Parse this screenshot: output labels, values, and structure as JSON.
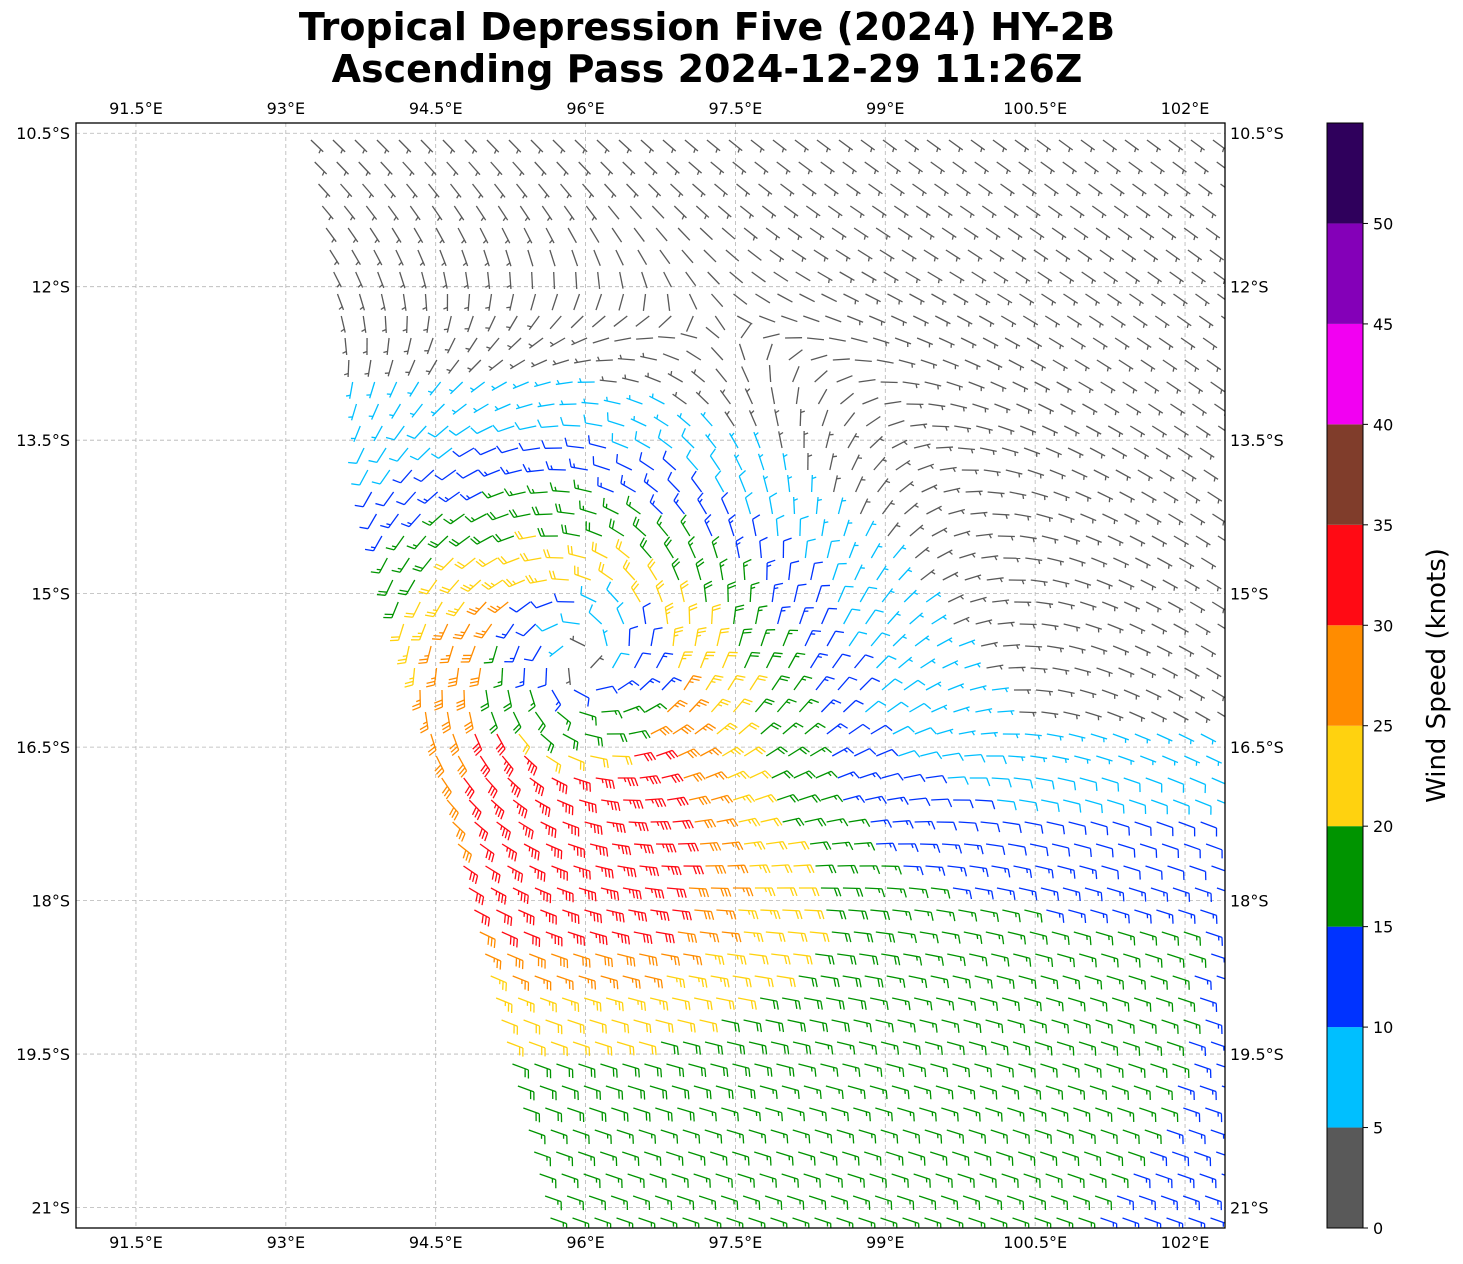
{
  "title": {
    "line1": "Tropical Depression Five (2024) HY-2B",
    "line2": "Ascending Pass 2024-12-29 11:26Z"
  },
  "map": {
    "lon_range": [
      90.9,
      102.4
    ],
    "lat_range": [
      -21.2,
      -10.4
    ],
    "lon_ticks": [
      {
        "value": 91.5,
        "label": "91.5°E"
      },
      {
        "value": 93,
        "label": "93°E"
      },
      {
        "value": 94.5,
        "label": "94.5°E"
      },
      {
        "value": 96,
        "label": "96°E"
      },
      {
        "value": 97.5,
        "label": "97.5°E"
      },
      {
        "value": 99,
        "label": "99°E"
      },
      {
        "value": 100.5,
        "label": "100.5°E"
      },
      {
        "value": 102,
        "label": "102°E"
      }
    ],
    "lat_ticks": [
      {
        "value": -10.5,
        "label": "10.5°S"
      },
      {
        "value": -12,
        "label": "12°S"
      },
      {
        "value": -13.5,
        "label": "13.5°S"
      },
      {
        "value": -15,
        "label": "15°S"
      },
      {
        "value": -16.5,
        "label": "16.5°S"
      },
      {
        "value": -18,
        "label": "18°S"
      },
      {
        "value": -19.5,
        "label": "19.5°S"
      },
      {
        "value": -21,
        "label": "21°S"
      }
    ],
    "grid": true,
    "storm_center": {
      "lon": 95.9,
      "lat": -15.8
    },
    "barbs": "wind barbs in knots, cyclonic (clockwise) circulation around a center near 95.9°E 15.8°S; weak winds near the center, strongest 30-35 kt band to the south-west"
  },
  "colorbar": {
    "label": "Wind Speed (knots)",
    "ticks": [
      "0",
      "5",
      "10",
      "15",
      "20",
      "25",
      "30",
      "35",
      "40",
      "45",
      "50"
    ],
    "bins": [
      {
        "from": 0,
        "to": 5,
        "color": "#595959"
      },
      {
        "from": 5,
        "to": 10,
        "color": "#00bfff"
      },
      {
        "from": 10,
        "to": 15,
        "color": "#0033ff"
      },
      {
        "from": 15,
        "to": 20,
        "color": "#009400"
      },
      {
        "from": 20,
        "to": 25,
        "color": "#ffd20f"
      },
      {
        "from": 25,
        "to": 30,
        "color": "#ff8c00"
      },
      {
        "from": 30,
        "to": 35,
        "color": "#ff0a14"
      },
      {
        "from": 35,
        "to": 40,
        "color": "#803d2b"
      },
      {
        "from": 40,
        "to": 45,
        "color": "#f200f2"
      },
      {
        "from": 45,
        "to": 50,
        "color": "#8400b8"
      },
      {
        "from": 50,
        "to": 55,
        "color": "#2f005c"
      }
    ]
  }
}
